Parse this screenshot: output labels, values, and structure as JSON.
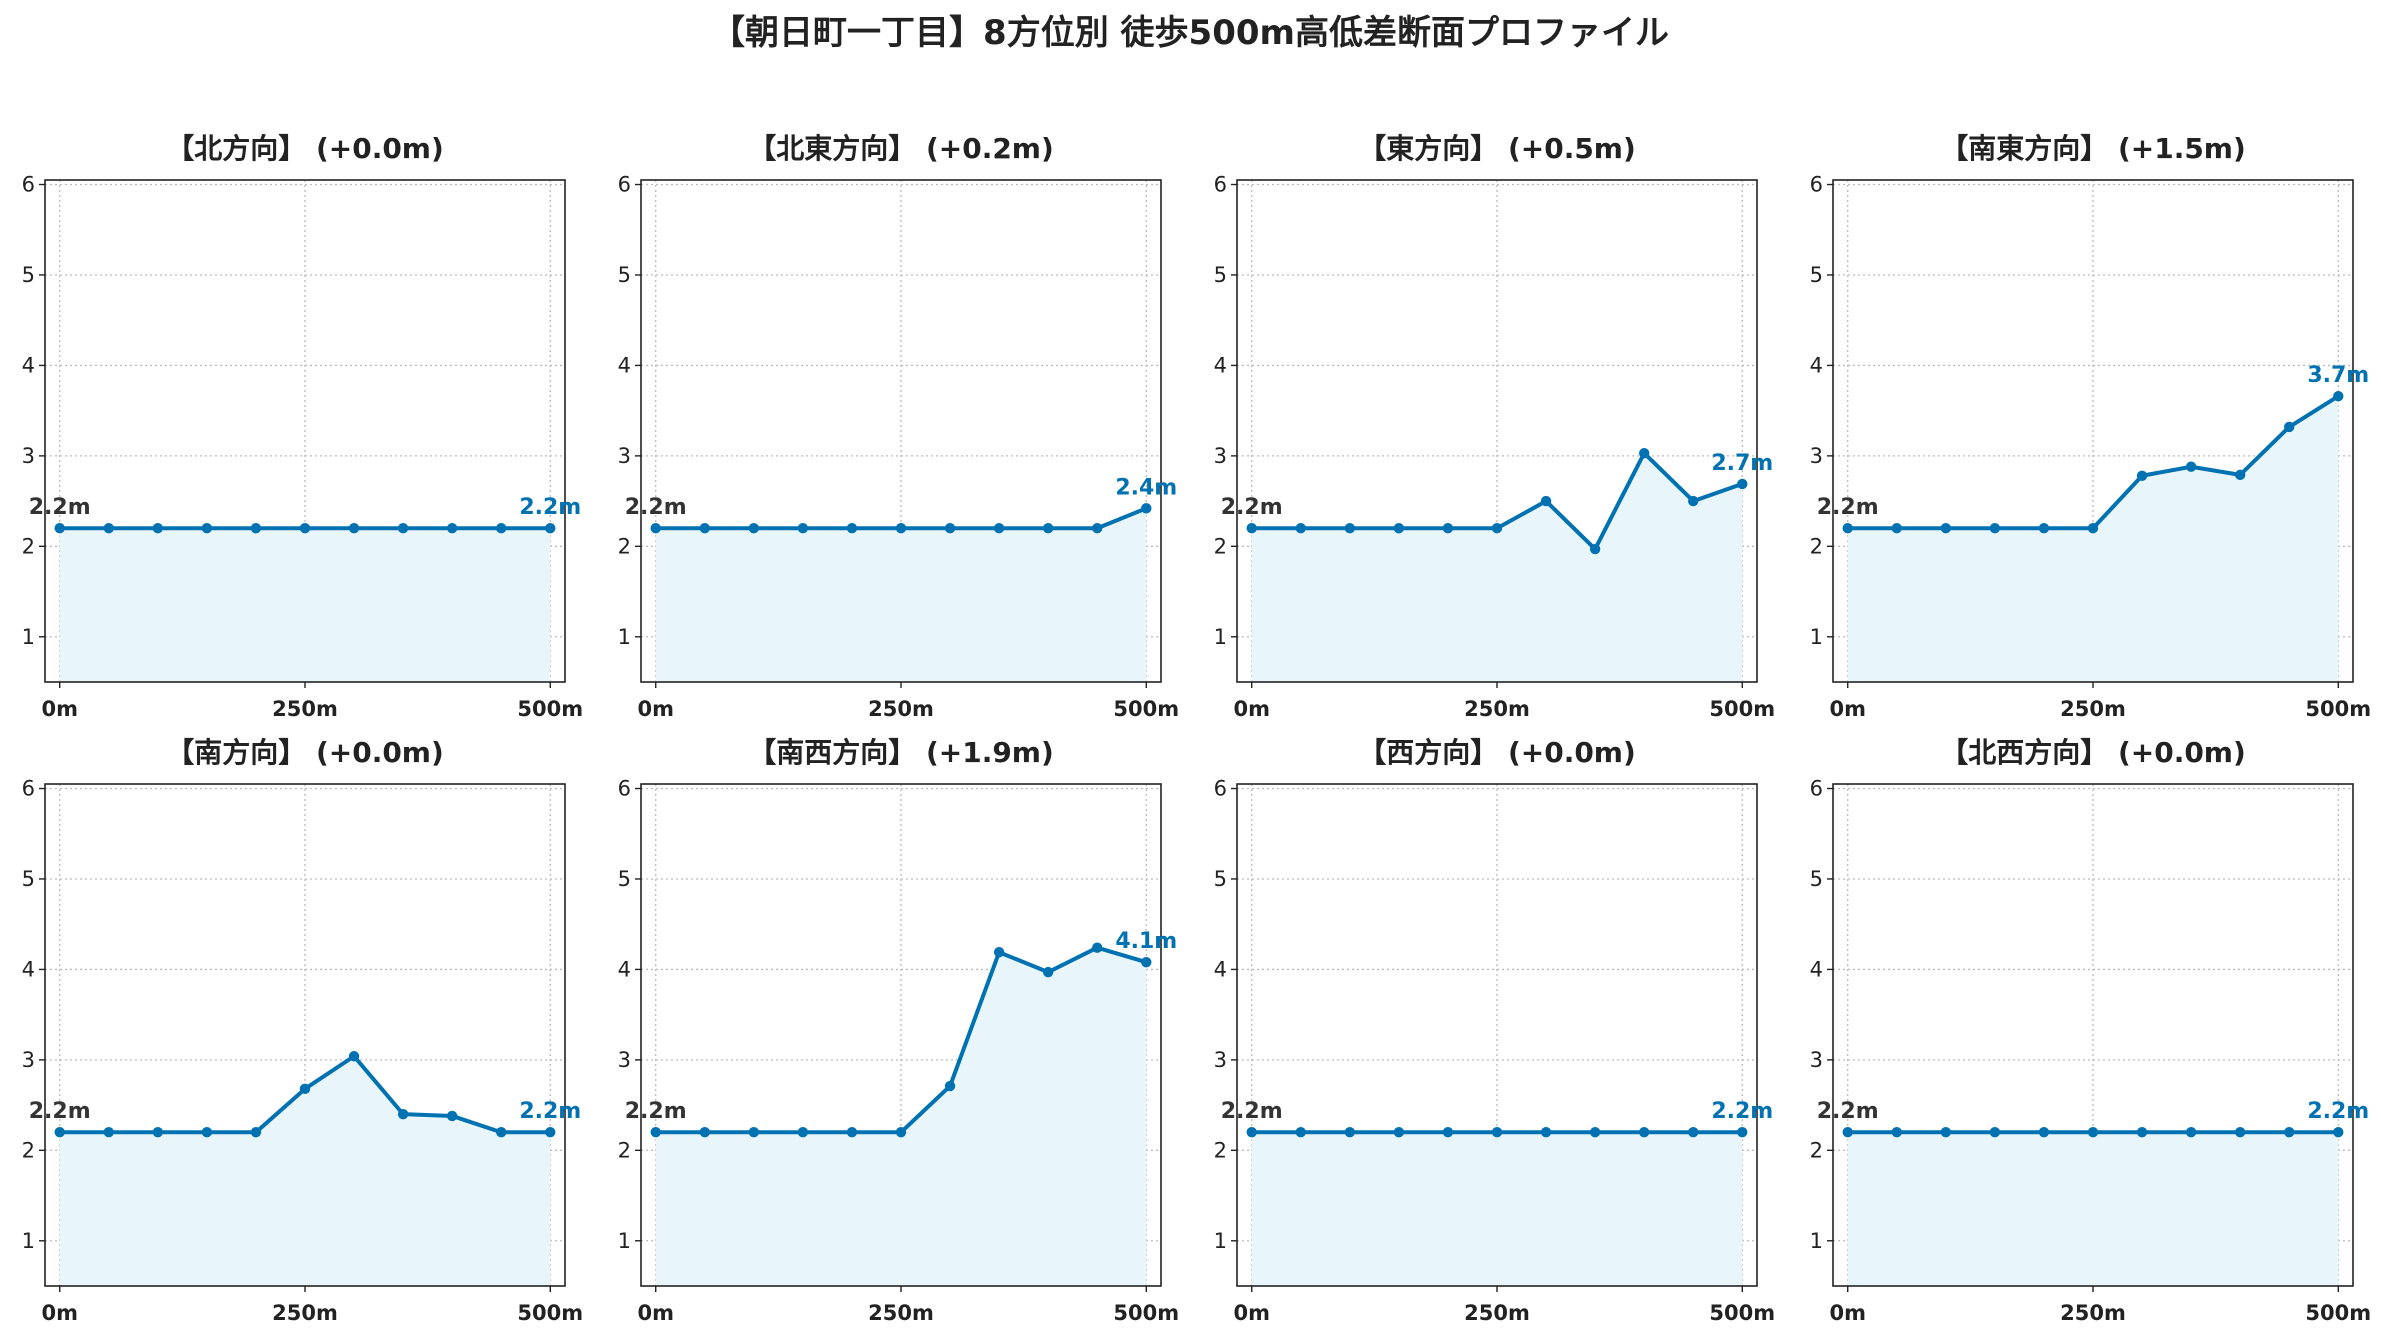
{
  "title": "【朝日町一丁目】8方位別 徒歩500m高低差断面プロファイル",
  "colors": {
    "line": "#0072b2",
    "fill": "#e8f6fc",
    "start_label": "#333333",
    "end_label": "#0072b2"
  },
  "chart_data": [
    {
      "type": "area",
      "title": "【北方向】 (+0.0m)",
      "x": [
        0,
        50,
        100,
        150,
        200,
        250,
        300,
        350,
        400,
        450,
        500
      ],
      "y": [
        2.2,
        2.2,
        2.2,
        2.2,
        2.2,
        2.2,
        2.2,
        2.2,
        2.2,
        2.2,
        2.2
      ],
      "xticks": [
        "0m",
        "250m",
        "500m"
      ],
      "xlim": [
        -15,
        515
      ],
      "ylim": [
        0.5,
        6.05
      ],
      "yticks": [
        "1",
        "2",
        "3",
        "4",
        "5",
        "6"
      ],
      "start_label": "2.2m",
      "end_label": "2.2m",
      "grid": true
    },
    {
      "type": "area",
      "title": "【北東方向】 (+0.2m)",
      "x": [
        0,
        50,
        100,
        150,
        200,
        250,
        300,
        350,
        400,
        450,
        500
      ],
      "y": [
        2.2,
        2.2,
        2.2,
        2.2,
        2.2,
        2.2,
        2.2,
        2.2,
        2.2,
        2.2,
        2.42
      ],
      "xticks": [
        "0m",
        "250m",
        "500m"
      ],
      "xlim": [
        -15,
        515
      ],
      "ylim": [
        0.5,
        6.05
      ],
      "yticks": [
        "1",
        "2",
        "3",
        "4",
        "5",
        "6"
      ],
      "start_label": "2.2m",
      "end_label": "2.4m",
      "grid": true
    },
    {
      "type": "area",
      "title": "【東方向】 (+0.5m)",
      "x": [
        0,
        50,
        100,
        150,
        200,
        250,
        300,
        350,
        400,
        450,
        500
      ],
      "y": [
        2.2,
        2.2,
        2.2,
        2.2,
        2.2,
        2.2,
        2.5,
        1.97,
        3.03,
        2.5,
        2.69
      ],
      "xticks": [
        "0m",
        "250m",
        "500m"
      ],
      "xlim": [
        -15,
        515
      ],
      "ylim": [
        0.5,
        6.05
      ],
      "yticks": [
        "1",
        "2",
        "3",
        "4",
        "5",
        "6"
      ],
      "start_label": "2.2m",
      "end_label": "2.7m",
      "grid": true
    },
    {
      "type": "area",
      "title": "【南東方向】 (+1.5m)",
      "x": [
        0,
        50,
        100,
        150,
        200,
        250,
        300,
        350,
        400,
        450,
        500
      ],
      "y": [
        2.2,
        2.2,
        2.2,
        2.2,
        2.2,
        2.2,
        2.78,
        2.88,
        2.79,
        3.32,
        3.66
      ],
      "xticks": [
        "0m",
        "250m",
        "500m"
      ],
      "xlim": [
        -15,
        515
      ],
      "ylim": [
        0.5,
        6.05
      ],
      "yticks": [
        "1",
        "2",
        "3",
        "4",
        "5",
        "6"
      ],
      "start_label": "2.2m",
      "end_label": "3.7m",
      "grid": true
    },
    {
      "type": "area",
      "title": "【南方向】 (+0.0m)",
      "x": [
        0,
        50,
        100,
        150,
        200,
        250,
        300,
        350,
        400,
        450,
        500
      ],
      "y": [
        2.2,
        2.2,
        2.2,
        2.2,
        2.2,
        2.68,
        3.04,
        2.4,
        2.38,
        2.2,
        2.2
      ],
      "xticks": [
        "0m",
        "250m",
        "500m"
      ],
      "xlim": [
        -15,
        515
      ],
      "ylim": [
        0.5,
        6.05
      ],
      "yticks": [
        "1",
        "2",
        "3",
        "4",
        "5",
        "6"
      ],
      "start_label": "2.2m",
      "end_label": "2.2m",
      "grid": true
    },
    {
      "type": "area",
      "title": "【南西方向】 (+1.9m)",
      "x": [
        0,
        50,
        100,
        150,
        200,
        250,
        300,
        350,
        400,
        450,
        500
      ],
      "y": [
        2.2,
        2.2,
        2.2,
        2.2,
        2.2,
        2.2,
        2.71,
        4.19,
        3.97,
        4.24,
        4.08
      ],
      "xticks": [
        "0m",
        "250m",
        "500m"
      ],
      "xlim": [
        -15,
        515
      ],
      "ylim": [
        0.5,
        6.05
      ],
      "yticks": [
        "1",
        "2",
        "3",
        "4",
        "5",
        "6"
      ],
      "start_label": "2.2m",
      "end_label": "4.1m",
      "grid": true
    },
    {
      "type": "area",
      "title": "【西方向】 (+0.0m)",
      "x": [
        0,
        50,
        100,
        150,
        200,
        250,
        300,
        350,
        400,
        450,
        500
      ],
      "y": [
        2.2,
        2.2,
        2.2,
        2.2,
        2.2,
        2.2,
        2.2,
        2.2,
        2.2,
        2.2,
        2.2
      ],
      "xticks": [
        "0m",
        "250m",
        "500m"
      ],
      "xlim": [
        -15,
        515
      ],
      "ylim": [
        0.5,
        6.05
      ],
      "yticks": [
        "1",
        "2",
        "3",
        "4",
        "5",
        "6"
      ],
      "start_label": "2.2m",
      "end_label": "2.2m",
      "grid": true
    },
    {
      "type": "area",
      "title": "【北西方向】 (+0.0m)",
      "x": [
        0,
        50,
        100,
        150,
        200,
        250,
        300,
        350,
        400,
        450,
        500
      ],
      "y": [
        2.2,
        2.2,
        2.2,
        2.2,
        2.2,
        2.2,
        2.2,
        2.2,
        2.2,
        2.2,
        2.2
      ],
      "xticks": [
        "0m",
        "250m",
        "500m"
      ],
      "xlim": [
        -15,
        515
      ],
      "ylim": [
        0.5,
        6.05
      ],
      "yticks": [
        "1",
        "2",
        "3",
        "4",
        "5",
        "6"
      ],
      "start_label": "2.2m",
      "end_label": "2.2m",
      "grid": true
    }
  ]
}
